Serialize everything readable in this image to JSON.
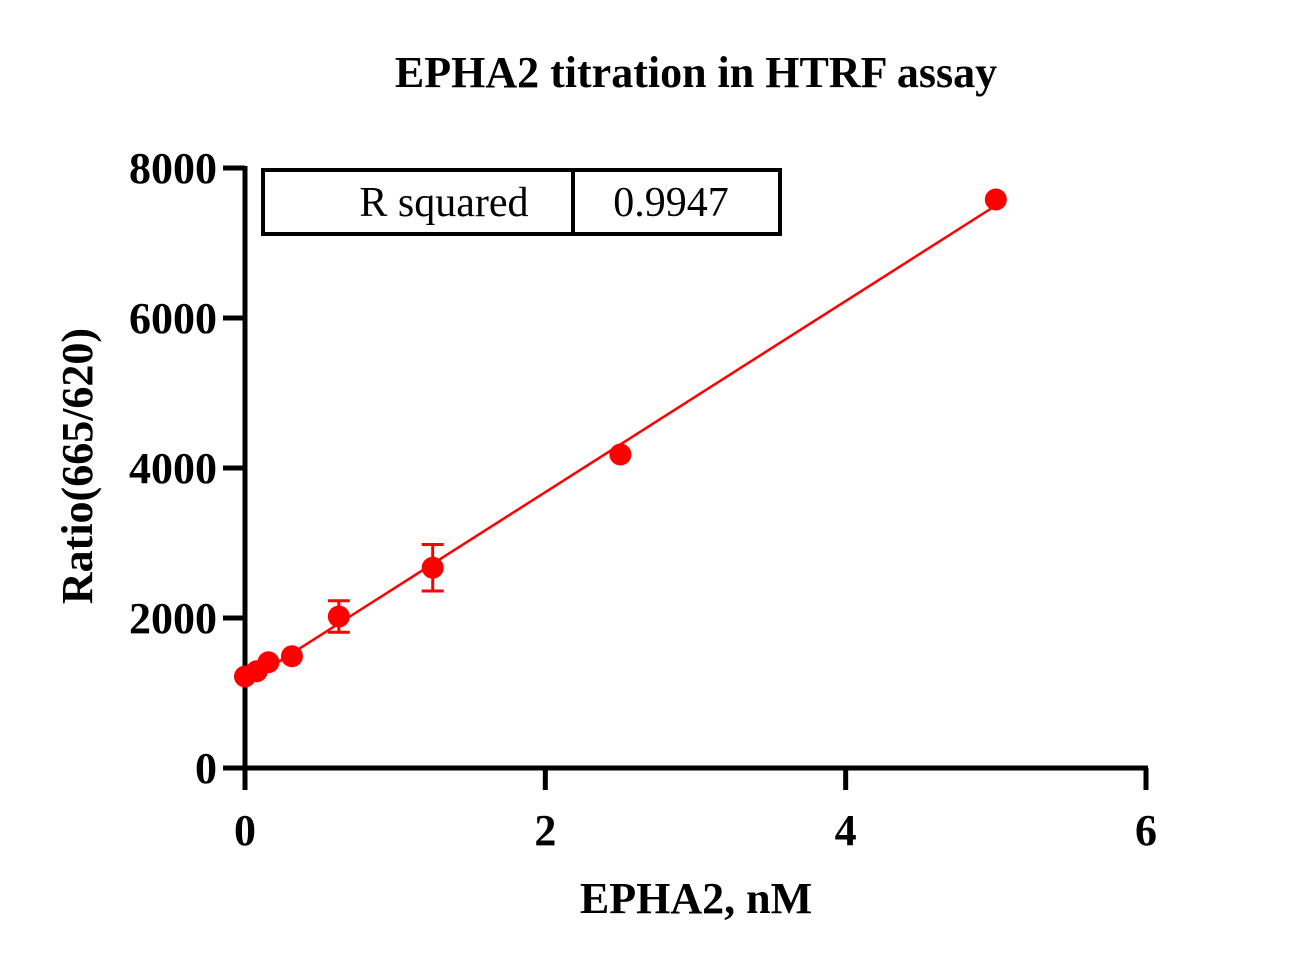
{
  "chart_data": {
    "type": "scatter",
    "title": "EPHA2 titration in HTRF assay",
    "xlabel": "EPHA2, nM",
    "ylabel": "Ratio(665/620)",
    "xlim": [
      0,
      6
    ],
    "ylim": [
      0,
      8000
    ],
    "xticks": [
      0,
      2,
      4,
      6
    ],
    "xtick_labels": [
      "0",
      "2",
      "4",
      "6"
    ],
    "yticks": [
      0,
      2000,
      4000,
      6000,
      8000
    ],
    "ytick_labels": [
      "0",
      "2000",
      "4000",
      "6000",
      "8000"
    ],
    "grid": false,
    "color": "#ff0000",
    "points": [
      {
        "x": 0.0,
        "y": 1220,
        "err": 0
      },
      {
        "x": 0.078,
        "y": 1290,
        "err": 0
      },
      {
        "x": 0.156,
        "y": 1410,
        "err": 0
      },
      {
        "x": 0.3125,
        "y": 1490,
        "err": 0
      },
      {
        "x": 0.625,
        "y": 2020,
        "err": 210
      },
      {
        "x": 1.25,
        "y": 2670,
        "err": 310
      },
      {
        "x": 2.5,
        "y": 4180,
        "err": 0
      },
      {
        "x": 5.0,
        "y": 7580,
        "err": 0
      }
    ],
    "fit_line": {
      "x": [
        0,
        5
      ],
      "y": [
        1130,
        7500
      ]
    },
    "stats_table": {
      "label": "R squared",
      "value": "0.9947"
    }
  }
}
